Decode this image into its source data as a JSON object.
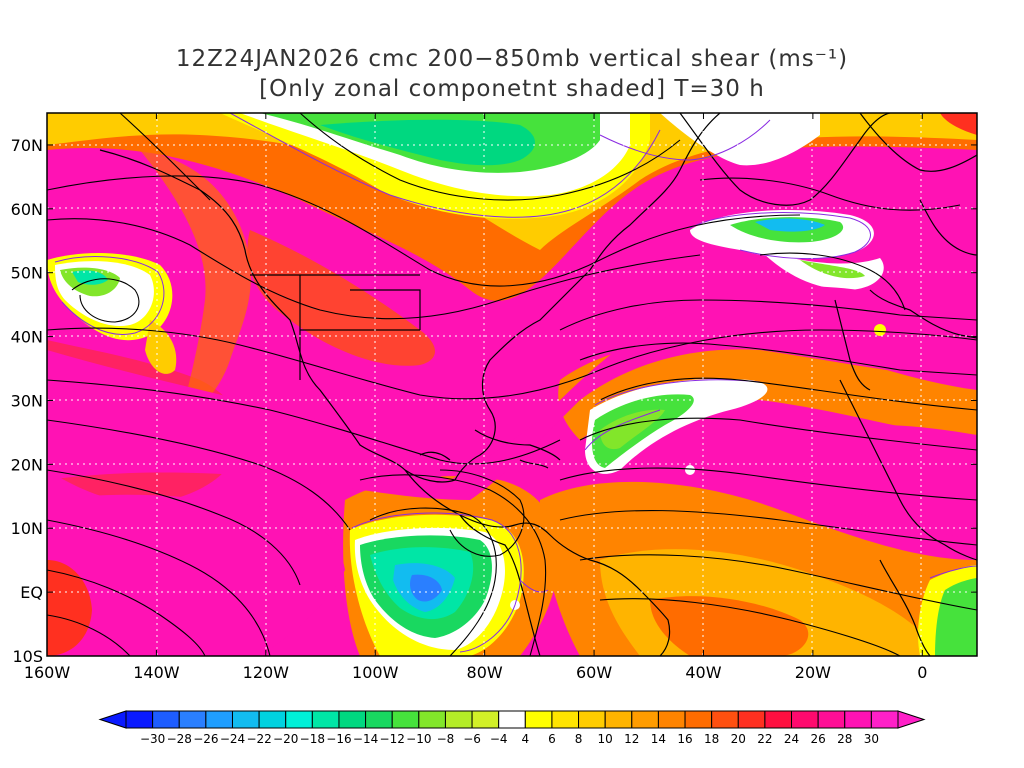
{
  "title": {
    "line1": "12Z24JAN2026 cmc 200−850mb vertical shear (ms⁻¹)",
    "line2": "[Only zonal componetnt shaded] T=30 h"
  },
  "map": {
    "lat_ticks": [
      "70N",
      "60N",
      "50N",
      "40N",
      "30N",
      "20N",
      "10N",
      "EQ",
      "10S"
    ],
    "lon_ticks": [
      "160W",
      "140W",
      "120W",
      "100W",
      "80W",
      "60W",
      "40W",
      "20W",
      "0"
    ],
    "lon_range": [
      -160,
      10
    ],
    "lat_range": [
      -10,
      75
    ],
    "gridlines": "dotted"
  },
  "colorbar": {
    "tick_labels": [
      "−30",
      "−28",
      "−26",
      "−24",
      "−22",
      "−20",
      "−18",
      "−16",
      "−14",
      "−12",
      "−10",
      "−8",
      "−6",
      "−4",
      "4",
      "6",
      "8",
      "10",
      "12",
      "14",
      "16",
      "18",
      "20",
      "22",
      "24",
      "26",
      "28",
      "30"
    ],
    "colors": [
      "#0a1aff",
      "#1e5dff",
      "#2a7fff",
      "#1f9eff",
      "#12bcf0",
      "#00d2e0",
      "#00f0d8",
      "#00e6a6",
      "#00d880",
      "#19d860",
      "#46e23c",
      "#82e62a",
      "#b4ec28",
      "#d2f028",
      "#ffffff",
      "#ffff00",
      "#ffe400",
      "#ffcc00",
      "#ffb400",
      "#ff9c00",
      "#ff8400",
      "#ff6c00",
      "#ff5010",
      "#ff3020",
      "#ff1040",
      "#ff0a6e",
      "#ff0e96",
      "#ff12b4",
      "#ff20c8"
    ]
  }
}
